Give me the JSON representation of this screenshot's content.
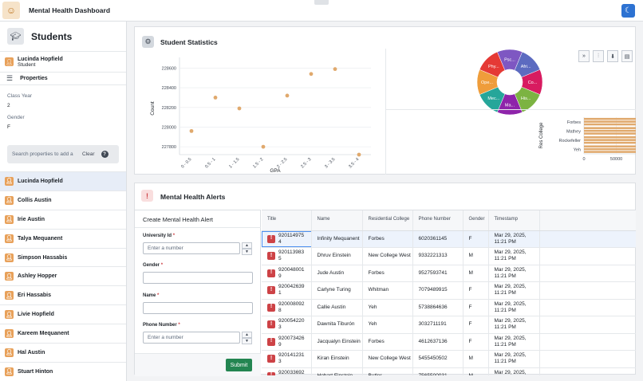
{
  "app": {
    "title": "Mental Health Dashboard"
  },
  "sidebar": {
    "title": "Students",
    "selected_user": {
      "name": "Lucinda Hopfield",
      "role": "Student"
    },
    "properties_label": "Properties",
    "properties": [
      {
        "label": "Class Year",
        "value": "2"
      },
      {
        "label": "Gender",
        "value": "F"
      }
    ],
    "search": {
      "placeholder": "Search properties to add a",
      "clear_label": "Clear",
      "help": "?"
    },
    "students": [
      "Lucinda Hopfield",
      "Collis Austin",
      "Irie Austin",
      "Talya Mequanent",
      "Simpson Hassabis",
      "Ashley Hopper",
      "Eri Hassabis",
      "Livie Hopfield",
      "Kareem Mequanent",
      "Hal Austin",
      "Stuart Hinton"
    ]
  },
  "stats": {
    "title": "Student Statistics",
    "scatter": {
      "type": "scatter",
      "xlabel": "GPA",
      "ylabel": "Count",
      "categories": [
        "0 - 0.5",
        "0.5 - 1",
        "1 - 1.5",
        "1.5 - 2",
        "2 - 2.5",
        "2.5 - 3",
        "3 - 3.5",
        "3.5 - 4"
      ],
      "y_ticks": [
        227800,
        228000,
        228200,
        228400,
        228600
      ],
      "ylim": [
        227720,
        228660
      ],
      "values": [
        227960,
        228300,
        228190,
        227800,
        228320,
        228540,
        228590,
        227720
      ],
      "color": "#e0a96d"
    },
    "pie": {
      "type": "pie",
      "labels": [
        "Psc...",
        "Afri...",
        "Co...",
        "His...",
        "Ma...",
        "Mec...",
        "Ope...",
        "Phy..."
      ],
      "values": [
        1,
        1,
        1,
        1,
        1,
        1,
        1,
        1
      ],
      "colors": [
        "#7e57c2",
        "#5c6bc0",
        "#d81b60",
        "#7cb342",
        "#8e24aa",
        "#26a69a",
        "#ef9d3b",
        "#e53935"
      ]
    },
    "bar": {
      "type": "bar",
      "ylabel": "Res College",
      "categories": [
        "Forbes",
        "Mathey",
        "Rockefeller",
        "Yeh"
      ],
      "x_ticks": [
        0,
        50000,
        100000,
        150000,
        200000,
        250000
      ],
      "x_tick_labels": [
        "0",
        "50000",
        "100000",
        "150000",
        "200000",
        "250000"
      ],
      "xlim": [
        0,
        265000
      ],
      "values": [
        228000,
        228000,
        228000,
        228000
      ],
      "color": "#e0a96d"
    },
    "tools": [
      "expand-icon",
      "sliders-icon",
      "download-icon",
      "clipboard-icon"
    ]
  },
  "alerts": {
    "title": "Mental Health Alerts",
    "form": {
      "title": "Create Mental Health Alert",
      "university_id": {
        "label": "University Id",
        "placeholder": "Enter a number"
      },
      "gender": {
        "label": "Gender",
        "placeholder": ""
      },
      "name": {
        "label": "Name",
        "placeholder": ""
      },
      "phone": {
        "label": "Phone Number",
        "placeholder": "Enter a number"
      },
      "required_mark": "*",
      "submit_label": "Submit"
    },
    "columns": [
      "Title",
      "Name",
      "Residential College",
      "Phone Number",
      "Gender",
      "Timestamp"
    ],
    "rows": [
      {
        "id": "9201149754",
        "name": "Infinity Mequanent",
        "college": "Forbes",
        "phone": "6020361145",
        "gender": "F",
        "timestamp": "Mar 29, 2025, 11:21 PM"
      },
      {
        "id": "9201139835",
        "name": "Dhruv Einstein",
        "college": "New College West",
        "phone": "9332221313",
        "gender": "M",
        "timestamp": "Mar 29, 2025, 11:21 PM"
      },
      {
        "id": "9200480019",
        "name": "Jude Austin",
        "college": "Forbes",
        "phone": "9527593741",
        "gender": "M",
        "timestamp": "Mar 29, 2025, 11:21 PM"
      },
      {
        "id": "9200426391",
        "name": "Carlyne Turing",
        "college": "Whitman",
        "phone": "7079489915",
        "gender": "F",
        "timestamp": "Mar 29, 2025, 11:21 PM"
      },
      {
        "id": "9200080928",
        "name": "Callie Austin",
        "college": "Yeh",
        "phone": "5738864636",
        "gender": "F",
        "timestamp": "Mar 29, 2025, 11:21 PM"
      },
      {
        "id": "9200542203",
        "name": "Dawnita Tiburón",
        "college": "Yeh",
        "phone": "3032711191",
        "gender": "F",
        "timestamp": "Mar 29, 2025, 11:21 PM"
      },
      {
        "id": "9200734269",
        "name": "Jacqualyn Einstein",
        "college": "Forbes",
        "phone": "4612637136",
        "gender": "F",
        "timestamp": "Mar 29, 2025, 11:21 PM"
      },
      {
        "id": "9201412313",
        "name": "Kiran Einstein",
        "college": "New College West",
        "phone": "5455450502",
        "gender": "M",
        "timestamp": "Mar 29, 2025, 11:21 PM"
      },
      {
        "id": "9200336927",
        "name": "Hobart Einstein",
        "college": "Butler",
        "phone": "7565500031",
        "gender": "M",
        "timestamp": "Mar 29, 2025, 11:21 PM"
      }
    ]
  }
}
